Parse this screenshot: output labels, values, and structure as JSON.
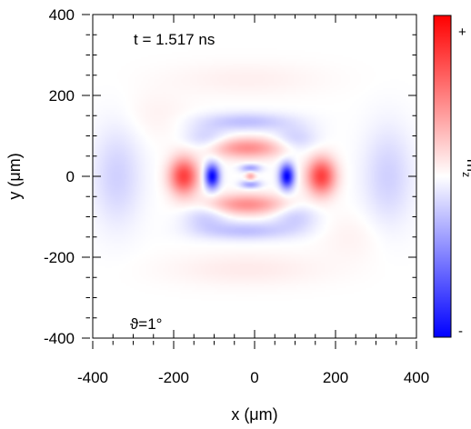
{
  "chart_data": {
    "type": "heatmap",
    "title": "",
    "annotations": {
      "time": "t = 1.517 ns",
      "angle": "ϑ=1°"
    },
    "xlabel": "x (μm)",
    "ylabel": "y (μm)",
    "xlim": [
      -400,
      400
    ],
    "ylim": [
      -400,
      400
    ],
    "x_ticks": [
      -400,
      -200,
      0,
      200,
      400
    ],
    "y_ticks": [
      -400,
      -200,
      0,
      200,
      400
    ],
    "x_tick_labels": [
      "-400",
      "-200",
      "0",
      "200",
      "400"
    ],
    "y_tick_labels": [
      "-400",
      "-200",
      "0",
      "200",
      "400"
    ],
    "colorbar": {
      "label": "m",
      "label_subscript": "z",
      "top_label": "+",
      "bottom_label": "-",
      "colors": {
        "positive": "#ff0000",
        "zero": "#ffffff",
        "negative": "#0000ff"
      }
    },
    "pattern_features": [
      {
        "shape": "blob",
        "x": -105,
        "y": 0,
        "rx": 18,
        "ry": 30,
        "value": -1.0
      },
      {
        "shape": "blob",
        "x": 80,
        "y": 0,
        "rx": 18,
        "ry": 30,
        "value": -1.0
      },
      {
        "shape": "blob",
        "x": -175,
        "y": 0,
        "rx": 35,
        "ry": 45,
        "value": 0.75
      },
      {
        "shape": "blob",
        "x": 165,
        "y": 0,
        "rx": 35,
        "ry": 45,
        "value": 0.75
      },
      {
        "shape": "blob",
        "x": -20,
        "y": 70,
        "rx": 100,
        "ry": 25,
        "value": 0.45
      },
      {
        "shape": "blob",
        "x": -20,
        "y": -70,
        "rx": 100,
        "ry": 25,
        "value": 0.45
      },
      {
        "shape": "blob",
        "x": -10,
        "y": 20,
        "rx": 25,
        "ry": 10,
        "value": -0.4
      },
      {
        "shape": "blob",
        "x": -10,
        "y": -20,
        "rx": 25,
        "ry": 10,
        "value": -0.4
      },
      {
        "shape": "blob",
        "x": -10,
        "y": 0,
        "rx": 12,
        "ry": 12,
        "value": 0.35
      },
      {
        "shape": "blob",
        "x": -20,
        "y": 135,
        "rx": 110,
        "ry": 22,
        "value": -0.25
      },
      {
        "shape": "blob",
        "x": -20,
        "y": -135,
        "rx": 110,
        "ry": 22,
        "value": -0.25
      },
      {
        "shape": "blob",
        "x": -120,
        "y": -100,
        "rx": 55,
        "ry": 35,
        "value": -0.2
      },
      {
        "shape": "blob",
        "x": 100,
        "y": -100,
        "rx": 55,
        "ry": 35,
        "value": -0.2
      },
      {
        "shape": "blob",
        "x": -120,
        "y": 90,
        "rx": 55,
        "ry": 35,
        "value": -0.2
      },
      {
        "shape": "blob",
        "x": 100,
        "y": 90,
        "rx": 55,
        "ry": 35,
        "value": -0.2
      },
      {
        "shape": "blob",
        "x": -340,
        "y": 0,
        "rx": 60,
        "ry": 120,
        "value": -0.18
      },
      {
        "shape": "blob",
        "x": 330,
        "y": 0,
        "rx": 60,
        "ry": 120,
        "value": -0.18
      },
      {
        "shape": "blob",
        "x": -20,
        "y": -230,
        "rx": 190,
        "ry": 40,
        "value": 0.08
      },
      {
        "shape": "blob",
        "x": -20,
        "y": 240,
        "rx": 190,
        "ry": 40,
        "value": 0.06
      },
      {
        "shape": "blob",
        "x": -240,
        "y": 150,
        "rx": 80,
        "ry": 60,
        "value": 0.05
      },
      {
        "shape": "blob",
        "x": 240,
        "y": -150,
        "rx": 80,
        "ry": 60,
        "value": 0.05
      }
    ]
  }
}
